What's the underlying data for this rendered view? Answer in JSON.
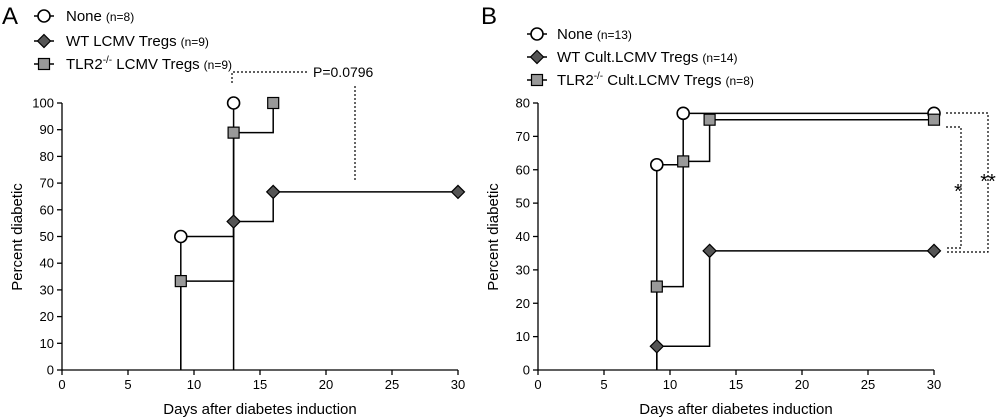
{
  "chart_data": [
    {
      "type": "line",
      "step": true,
      "panel_label": "A",
      "xlabel": "Days after diabetes induction",
      "ylabel": "Percent diabetic",
      "xlim": [
        0,
        30
      ],
      "ylim": [
        0,
        100
      ],
      "xticks": [
        0,
        5,
        10,
        15,
        20,
        25,
        30
      ],
      "yticks": [
        0,
        10,
        20,
        30,
        40,
        50,
        60,
        70,
        80,
        90,
        100
      ],
      "legend_position": "top-left",
      "series": [
        {
          "name": "None",
          "n": "(n=8)",
          "marker": "circle",
          "color": "#ffffff",
          "x": [
            9,
            13
          ],
          "y": [
            50,
            100
          ],
          "end_x": 13
        },
        {
          "name": "WT LCMV Tregs",
          "n": "(n=9)",
          "marker": "diamond",
          "color": "#555555",
          "x": [
            13,
            16,
            30
          ],
          "y": [
            55.6,
            66.7,
            66.7
          ],
          "end_x": 30
        },
        {
          "name": "TLR2",
          "name_sup": "-/-",
          "name_rest": " LCMV Tregs",
          "n": "(n=9)",
          "marker": "square",
          "color": "#999999",
          "x": [
            9,
            13,
            16
          ],
          "y": [
            33.3,
            88.9,
            100
          ],
          "end_x": 16
        }
      ],
      "annotations": [
        {
          "text": "P=0.0796"
        }
      ]
    },
    {
      "type": "line",
      "step": true,
      "panel_label": "B",
      "xlabel": "Days after diabetes induction",
      "ylabel": "Percent diabetic",
      "xlim": [
        0,
        30
      ],
      "ylim": [
        0,
        80
      ],
      "xticks": [
        0,
        5,
        10,
        15,
        20,
        25,
        30
      ],
      "yticks": [
        0,
        10,
        20,
        30,
        40,
        50,
        60,
        70,
        80
      ],
      "legend_position": "top-left",
      "series": [
        {
          "name": "None",
          "n": "(n=13)",
          "marker": "circle",
          "color": "#ffffff",
          "x": [
            9,
            11,
            30
          ],
          "y": [
            61.5,
            76.9,
            76.9
          ],
          "end_x": 30
        },
        {
          "name": "WT Cult.LCMV Tregs",
          "n": "(n=14)",
          "marker": "diamond",
          "color": "#555555",
          "x": [
            9,
            13,
            30
          ],
          "y": [
            7.1,
            35.7,
            35.7
          ],
          "end_x": 30
        },
        {
          "name": "TLR2",
          "name_sup": "-/-",
          "name_rest": " Cult.LCMV Tregs",
          "n": "(n=8)",
          "marker": "square",
          "color": "#999999",
          "x": [
            9,
            11,
            13,
            30
          ],
          "y": [
            25,
            62.5,
            75,
            75
          ],
          "end_x": 30
        }
      ],
      "annotations": [
        {
          "text": "*"
        },
        {
          "text": "**"
        }
      ]
    }
  ]
}
